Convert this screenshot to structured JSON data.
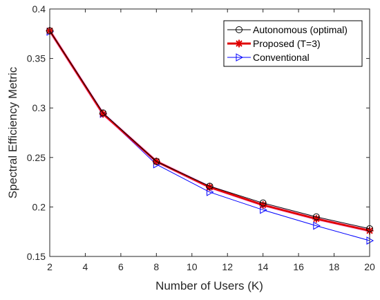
{
  "chart_data": {
    "type": "line",
    "title": "",
    "xlabel": "Number of Users (K)",
    "ylabel": "Spectral Efficiency Metric",
    "xlim": [
      2,
      20
    ],
    "ylim": [
      0.15,
      0.4
    ],
    "xticks": [
      "2",
      "4",
      "6",
      "8",
      "10",
      "12",
      "14",
      "16",
      "18",
      "20"
    ],
    "yticks": [
      "0.15",
      "0.2",
      "0.25",
      "0.3",
      "0.35",
      "0.4"
    ],
    "grid": false,
    "legend_position": "top-right",
    "x": [
      2,
      5,
      8,
      11,
      14,
      17,
      20
    ],
    "series": [
      {
        "name": "Autonomous (optimal)",
        "color": "#000000",
        "marker": "circle",
        "values": [
          0.378,
          0.295,
          0.246,
          0.221,
          0.204,
          0.19,
          0.178
        ]
      },
      {
        "name": "Proposed (T=3)",
        "color": "#e00000",
        "marker": "star",
        "values": [
          0.378,
          0.294,
          0.246,
          0.22,
          0.202,
          0.188,
          0.176
        ]
      },
      {
        "name": "Conventional",
        "color": "#0000ff",
        "marker": "triangle-right",
        "values": [
          0.377,
          0.294,
          0.243,
          0.215,
          0.197,
          0.181,
          0.166
        ]
      }
    ]
  }
}
